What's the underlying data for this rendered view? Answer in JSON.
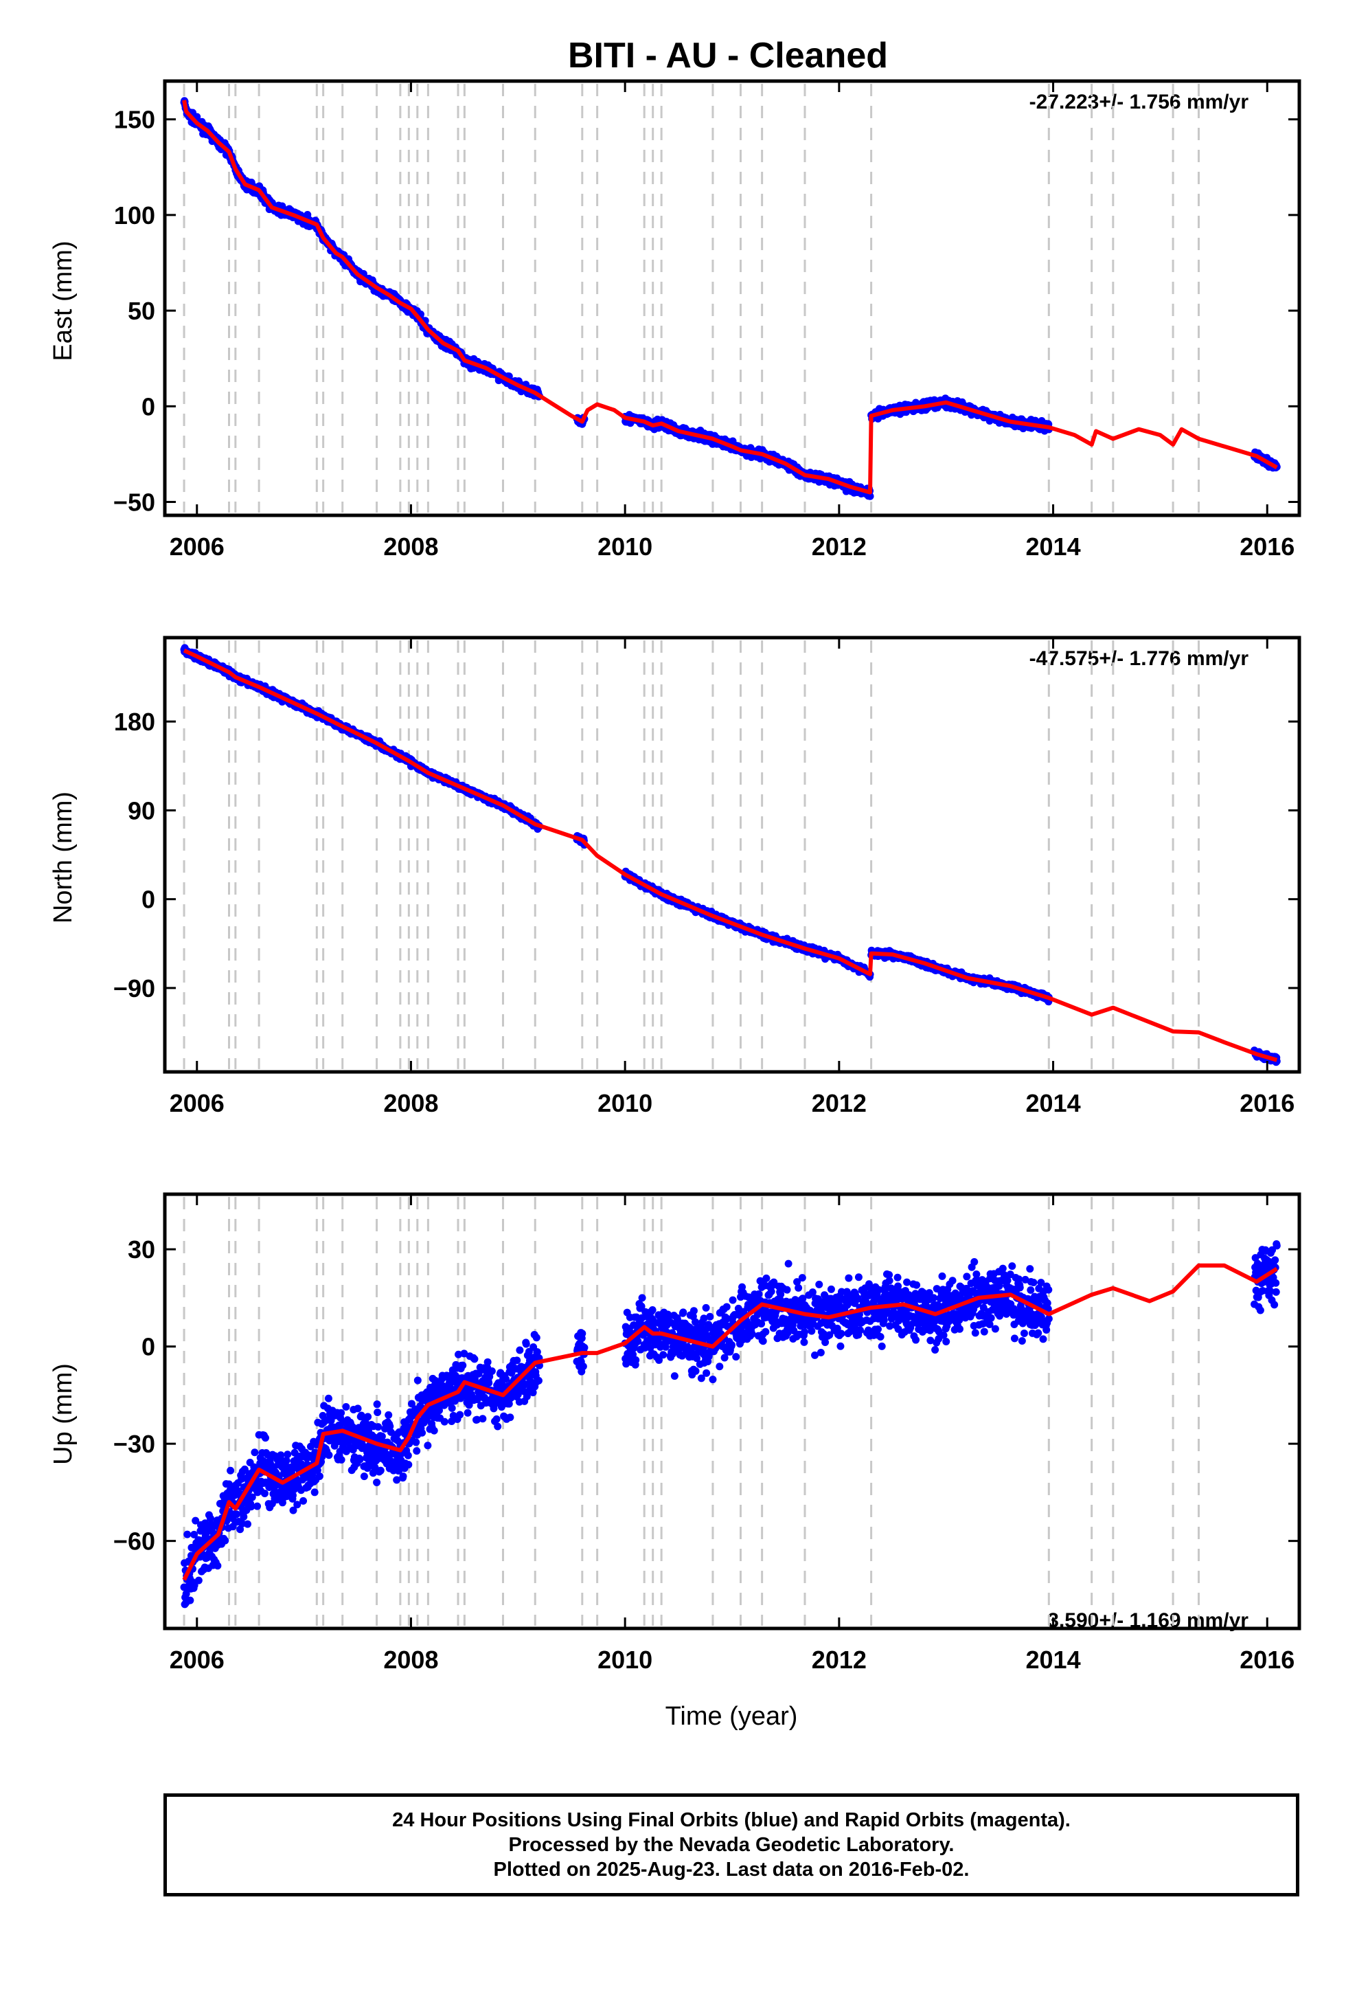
{
  "title": "BITI  - AU - Cleaned",
  "x_axis_label": "Time (year)",
  "footer": {
    "line1": "24 Hour Positions Using Final Orbits (blue) and Rapid Orbits (magenta).",
    "line2": "Processed by the Nevada Geodetic Laboratory.",
    "line3": "Plotted on 2025-Aug-23. Last data on 2016-Feb-02."
  },
  "colors": {
    "data": "#0000ff",
    "model": "#ff0000",
    "steps": "#c8c8c8",
    "frame": "#000000"
  },
  "step_epochs": [
    2005.88,
    2006.3,
    2006.36,
    2006.58,
    2007.12,
    2007.18,
    2007.36,
    2007.68,
    2007.9,
    2007.98,
    2008.06,
    2008.16,
    2008.44,
    2008.5,
    2008.86,
    2009.16,
    2009.6,
    2009.74,
    2010.18,
    2010.26,
    2010.34,
    2010.82,
    2011.08,
    2011.28,
    2011.68,
    2012.3,
    2013.96,
    2014.36,
    2014.56,
    2015.12,
    2015.36
  ],
  "chart_data": [
    {
      "type": "scatter",
      "ylabel": "East (mm)",
      "rate_label": "-27.223+/- 1.756 mm/yr",
      "xlim": [
        2005.7,
        2016.3
      ],
      "ylim": [
        -57,
        170
      ],
      "xticks": [
        2006,
        2008,
        2010,
        2012,
        2014,
        2016
      ],
      "yticks": [
        150,
        100,
        50,
        0,
        -50
      ],
      "x_tick_labels": [
        "2006",
        "2008",
        "2010",
        "2012",
        "2014",
        "2016"
      ],
      "y_tick_labels": [
        "150",
        "100",
        "50",
        "0",
        "−50"
      ],
      "series": [
        {
          "x": [
            2005.88,
            2005.9,
            2006.0,
            2006.1,
            2006.2,
            2006.3,
            2006.36,
            2006.45,
            2006.58,
            2006.7,
            2006.9,
            2007.12,
            2007.18,
            2007.3,
            2007.36,
            2007.5,
            2007.68,
            2007.8,
            2007.9,
            2008.0,
            2008.06,
            2008.16,
            2008.3,
            2008.44,
            2008.5,
            2008.7,
            2008.86,
            2009.0,
            2009.16,
            2009.3,
            2009.5,
            2009.6,
            2009.65,
            2009.74,
            2009.9,
            2010.0,
            2010.18,
            2010.26,
            2010.34,
            2010.5,
            2010.82,
            2011.0,
            2011.08,
            2011.28,
            2011.5,
            2011.68,
            2011.9,
            2012.1,
            2012.29,
            2012.3,
            2012.5,
            2012.8,
            2013.0,
            2013.3,
            2013.6,
            2013.96,
            2014.2,
            2014.36,
            2014.4,
            2014.56,
            2014.8,
            2015.0,
            2015.12,
            2015.2,
            2015.36,
            2015.6,
            2015.9,
            2016.09
          ],
          "y": [
            160,
            154,
            148,
            144,
            138,
            133,
            124,
            116,
            113,
            104,
            100,
            95,
            88,
            80,
            78,
            69,
            62,
            58,
            54,
            51,
            47,
            40,
            33,
            29,
            24,
            20,
            15,
            11,
            7,
            2,
            -5,
            -8,
            -2,
            1,
            -2,
            -6,
            -8,
            -10,
            -9,
            -13,
            -17,
            -21,
            -23,
            -25,
            -30,
            -36,
            -38,
            -42,
            -45,
            -5,
            -2,
            0,
            2,
            -3,
            -8,
            -11,
            -15,
            -20,
            -13,
            -17,
            -12,
            -15,
            -20,
            -12,
            -17,
            -21,
            -26,
            -32
          ]
        }
      ]
    },
    {
      "type": "scatter",
      "ylabel": "North (mm)",
      "rate_label": "-47.575+/- 1.776 mm/yr",
      "xlim": [
        2005.7,
        2016.3
      ],
      "ylim": [
        -175,
        265
      ],
      "xticks": [
        2006,
        2008,
        2010,
        2012,
        2014,
        2016
      ],
      "yticks": [
        180,
        90,
        0,
        -90
      ],
      "x_tick_labels": [
        "2006",
        "2008",
        "2010",
        "2012",
        "2014",
        "2016"
      ],
      "y_tick_labels": [
        "180",
        "90",
        "0",
        "−90"
      ],
      "series": [
        {
          "x": [
            2005.88,
            2006.0,
            2006.3,
            2006.36,
            2006.58,
            2007.12,
            2007.36,
            2007.68,
            2007.98,
            2008.16,
            2008.5,
            2008.86,
            2009.16,
            2009.6,
            2009.74,
            2010.0,
            2010.34,
            2010.82,
            2011.28,
            2011.68,
            2012.0,
            2012.29,
            2012.3,
            2012.5,
            2012.8,
            2013.2,
            2013.6,
            2013.96,
            2014.36,
            2014.56,
            2015.12,
            2015.36,
            2015.6,
            2015.9,
            2016.09
          ],
          "y": [
            252,
            246,
            230,
            225,
            215,
            188,
            175,
            158,
            140,
            128,
            112,
            95,
            76,
            60,
            44,
            25,
            5,
            -17,
            -36,
            -50,
            -60,
            -76,
            -55,
            -56,
            -65,
            -80,
            -88,
            -100,
            -117,
            -110,
            -134,
            -135,
            -145,
            -157,
            -163
          ]
        }
      ]
    },
    {
      "type": "scatter",
      "ylabel": "Up (mm)",
      "rate_label": "3.590+/- 1.169 mm/yr",
      "xlim": [
        2005.7,
        2016.3
      ],
      "ylim": [
        -87,
        47
      ],
      "xticks": [
        2006,
        2008,
        2010,
        2012,
        2014,
        2016
      ],
      "yticks": [
        30,
        0,
        -30,
        -60
      ],
      "x_tick_labels": [
        "2006",
        "2008",
        "2010",
        "2012",
        "2014",
        "2016"
      ],
      "y_tick_labels": [
        "30",
        "0",
        "−30",
        "−60"
      ],
      "series": [
        {
          "x": [
            2005.88,
            2006.0,
            2006.2,
            2006.3,
            2006.36,
            2006.58,
            2006.8,
            2007.12,
            2007.18,
            2007.36,
            2007.68,
            2007.9,
            2007.98,
            2008.06,
            2008.16,
            2008.44,
            2008.5,
            2008.86,
            2009.16,
            2009.6,
            2009.74,
            2010.0,
            2010.18,
            2010.26,
            2010.34,
            2010.82,
            2011.08,
            2011.28,
            2011.68,
            2011.9,
            2012.3,
            2012.6,
            2012.9,
            2013.3,
            2013.6,
            2013.96,
            2014.36,
            2014.56,
            2014.9,
            2015.12,
            2015.36,
            2015.6,
            2015.9,
            2016.09
          ],
          "y": [
            -72,
            -64,
            -58,
            -48,
            -50,
            -38,
            -42,
            -36,
            -27,
            -26,
            -30,
            -32,
            -28,
            -22,
            -18,
            -14,
            -11,
            -15,
            -5,
            -2,
            -2,
            1,
            6,
            4,
            4,
            0,
            8,
            13,
            10,
            9,
            12,
            13,
            10,
            15,
            16,
            10,
            16,
            18,
            14,
            17,
            25,
            25,
            20,
            24
          ]
        }
      ]
    }
  ]
}
